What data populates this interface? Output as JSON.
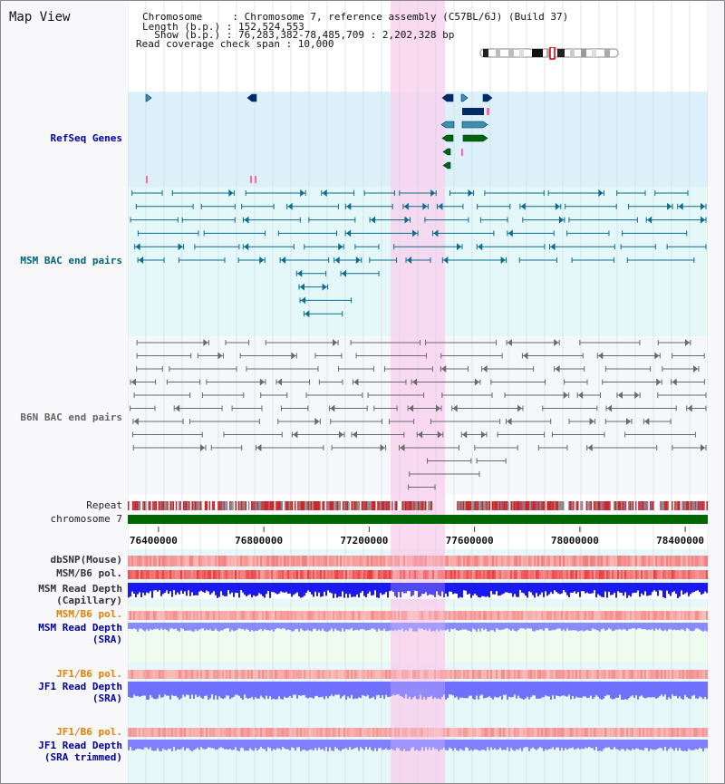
{
  "header": {
    "title": "Map View",
    "chromosome_line": "Chromosome     : Chromosome 7, reference assembly (C57BL/6J) (Build 37)",
    "length_line": "Length (b.p.) : 152,524,553",
    "show_line": "  Show (b.p.) : 76,283,382-78,485,709 : 2,202,328 bp",
    "coverage_line": "Read coverage check span : 10,000"
  },
  "tracks": {
    "refseq": "RefSeq Genes",
    "msm_bac": "MSM BAC end pairs",
    "b6n_bac": "B6N BAC end pairs",
    "repeat": "Repeat",
    "chromosome": "chromosome 7",
    "dbsnp": "dbSNP(Mouse)",
    "msm_b6_pol_1": "MSM/B6 pol.",
    "msm_read_depth_cap_1": "MSM Read Depth",
    "msm_read_depth_cap_2": "(Capillary)",
    "msm_b6_pol_2": "MSM/B6 pol.",
    "msm_read_depth_sra_1": "MSM Read Depth",
    "msm_read_depth_sra_2": "(SRA)",
    "jf1_b6_pol_1": "JF1/B6 pol.",
    "jf1_read_depth_sra_1": "JF1 Read Depth",
    "jf1_read_depth_sra_2": "(SRA)",
    "jf1_b6_pol_2": "JF1/B6 pol.",
    "jf1_read_depth_trim_1": "JF1 Read Depth",
    "jf1_read_depth_trim_2": "(SRA trimmed)"
  },
  "axis": {
    "ticks": [
      "76400000",
      "76800000",
      "77200000",
      "77600000",
      "78000000",
      "78400000"
    ],
    "tick_values": [
      76400000,
      76800000,
      77200000,
      77600000,
      78000000,
      78400000
    ],
    "range_start": 76283382,
    "range_end": 78485709
  },
  "colors": {
    "refseq_bg": "#dcf0fa",
    "msm_bg": "#e4f8fa",
    "highlight": "#f8d4ee",
    "msm_label": "#00647a",
    "refseq_label": "#0000aa",
    "b6n_label": "#666666",
    "orange_label": "#e08000",
    "blue_label": "#000099",
    "chromosome_bar": "#006600",
    "gene_navy": "#002a66",
    "gene_teal": "#3d8fb0",
    "gene_green": "#006600",
    "gene_pink": "#ff66aa"
  }
}
